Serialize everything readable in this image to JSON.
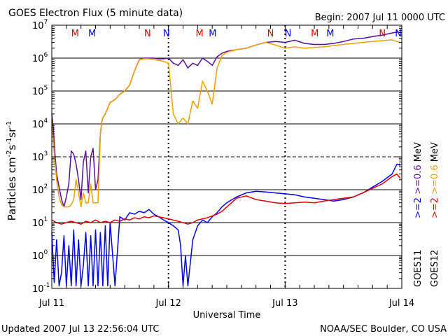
{
  "header": {
    "title": "GOES Electron Flux (5 minute data)",
    "begin": "Begin: 2007 Jul 11 0000 UTC"
  },
  "footer": {
    "updated": "Updated 2007 Jul 13 22:56:04 UTC",
    "source": "NOAA/SEC Boulder, CO USA"
  },
  "chart_data": {
    "type": "line",
    "title": "GOES Electron Flux (5 minute data)",
    "xlabel": "Universal Time",
    "ylabel_parts": [
      "Particles cm",
      "-2",
      "s",
      "-1",
      "sr",
      "-1"
    ],
    "x_unit": "hours since 2007 Jul 11 0000 UTC",
    "xlim": [
      0,
      72
    ],
    "x_ticks": [
      {
        "x": 0,
        "label": "Jul 11"
      },
      {
        "x": 24,
        "label": "Jul 12"
      },
      {
        "x": 48,
        "label": "Jul 13"
      },
      {
        "x": 72,
        "label": "Jul 14"
      }
    ],
    "y_scale": "log",
    "ylim": [
      0.1,
      10000000
    ],
    "y_tick_exponents": [
      -1,
      0,
      1,
      2,
      3,
      4,
      5,
      6,
      7
    ],
    "dashed_gridline": 1000,
    "satellite_markers": [
      {
        "x": 4.8,
        "label": "M",
        "color": "#e00000"
      },
      {
        "x": 8.3,
        "label": "M",
        "color": "#0000ff"
      },
      {
        "x": 19.7,
        "label": "N",
        "color": "#e00000"
      },
      {
        "x": 23.6,
        "label": "N",
        "color": "#0000ff"
      },
      {
        "x": 30.4,
        "label": "M",
        "color": "#e00000"
      },
      {
        "x": 33.1,
        "label": "M",
        "color": "#0000ff"
      },
      {
        "x": 45.0,
        "label": "N",
        "color": "#e00000"
      },
      {
        "x": 48.6,
        "label": "N",
        "color": "#0000ff"
      },
      {
        "x": 54.1,
        "label": "M",
        "color": "#e00000"
      },
      {
        "x": 57.3,
        "label": "M",
        "color": "#0000ff"
      },
      {
        "x": 68.0,
        "label": "N",
        "color": "#e00000"
      },
      {
        "x": 71.3,
        "label": "N",
        "color": "#0000ff"
      }
    ],
    "legend": {
      "goes11_label": "GOES11",
      "goes12_label": "GOES12",
      "mev": "MeV",
      "ge2": ">=2",
      "ge06": ">=0.6"
    },
    "series": [
      {
        "name": "GOES11 >=0.6 MeV",
        "color": "#5b0fa0",
        "x": [
          0,
          0.3,
          0.6,
          1.0,
          1.5,
          2.0,
          2.5,
          3.0,
          3.5,
          4.0,
          4.5,
          5.0,
          5.5,
          6.0,
          6.5,
          7.0,
          7.5,
          8.0,
          8.5,
          9.0,
          9.5,
          10.0,
          10.3,
          10.5,
          11.0,
          11.5,
          12.0,
          13.0,
          14.0,
          15.0,
          16.0,
          17.0,
          18.0,
          19.0,
          20.0,
          21.0,
          22.0,
          23.0,
          24.0,
          25.0,
          26.0,
          27.0,
          28.0,
          29.0,
          30.0,
          31.0,
          32.0,
          33.0,
          34.0,
          35.0,
          36.0,
          38.0,
          40.0,
          42.0,
          44.0,
          46.0,
          48.0,
          50.0,
          52.0,
          54.0,
          56.0,
          58.0,
          60.0,
          62.0,
          64.0,
          66.0,
          68.0,
          70.0,
          71.0,
          71.7
        ],
        "values": [
          20000,
          8000,
          1500,
          300,
          120,
          50,
          30,
          60,
          150,
          1500,
          1200,
          600,
          200,
          50,
          700,
          1500,
          80,
          1000,
          1800,
          100,
          200,
          5000,
          12000,
          15000,
          20000,
          30000,
          45000,
          55000,
          80000,
          100000,
          150000,
          400000,
          900000,
          1000000,
          1000000,
          1000000,
          950000,
          950000,
          1000000,
          700000,
          600000,
          900000,
          500000,
          700000,
          600000,
          1000000,
          800000,
          600000,
          1100000,
          1400000,
          1600000,
          1800000,
          2000000,
          2500000,
          3000000,
          3200000,
          3000000,
          3500000,
          2800000,
          2600000,
          2600000,
          2800000,
          3200000,
          3800000,
          4000000,
          4500000,
          5000000,
          5800000,
          6200000,
          6000000
        ]
      },
      {
        "name": "GOES12 >=0.6 MeV",
        "color": "#f0a000",
        "x": [
          0,
          0.3,
          0.6,
          1.0,
          1.5,
          2.0,
          2.5,
          3.0,
          3.5,
          4.0,
          4.5,
          5.0,
          5.5,
          6.0,
          6.5,
          7.0,
          7.5,
          8.0,
          8.5,
          9.0,
          9.5,
          10.0,
          10.3,
          10.5,
          11.0,
          11.5,
          12.0,
          13.0,
          14.0,
          15.0,
          16.0,
          17.0,
          18.0,
          19.0,
          20.0,
          21.0,
          22.0,
          23.0,
          24.0,
          25.0,
          26.0,
          27.0,
          28.0,
          29.0,
          30.0,
          31.0,
          32.0,
          33.0,
          34.0,
          35.0,
          36.0,
          38.0,
          40.0,
          42.0,
          44.0,
          46.0,
          48.0,
          50.0,
          52.0,
          54.0,
          56.0,
          58.0,
          60.0,
          62.0,
          64.0,
          66.0,
          68.0,
          70.0,
          71.0,
          71.7
        ],
        "values": [
          12000,
          3000,
          800,
          200,
          60,
          35,
          30,
          30,
          30,
          35,
          50,
          200,
          80,
          30,
          80,
          40,
          40,
          150,
          40,
          40,
          40,
          5000,
          12000,
          15000,
          20000,
          30000,
          45000,
          55000,
          80000,
          100000,
          150000,
          400000,
          900000,
          950000,
          950000,
          900000,
          850000,
          800000,
          700000,
          20000,
          10000,
          15000,
          10000,
          50000,
          30000,
          200000,
          100000,
          40000,
          500000,
          1200000,
          1500000,
          1800000,
          2000000,
          2500000,
          3000000,
          2500000,
          2000000,
          2200000,
          2000000,
          2100000,
          2200000,
          2400000,
          2600000,
          2800000,
          3000000,
          3200000,
          3400000,
          3600000,
          3200000,
          3000000
        ]
      },
      {
        "name": "GOES11 >=2 MeV",
        "color": "#0000ff",
        "x": [
          0,
          0.5,
          1.0,
          1.5,
          2.0,
          2.5,
          3.0,
          3.5,
          4.0,
          4.5,
          5.0,
          5.5,
          6.0,
          6.5,
          7.0,
          7.5,
          8.0,
          8.5,
          9.0,
          9.5,
          10.0,
          10.5,
          11.0,
          11.5,
          12.0,
          13.0,
          14.0,
          15.0,
          16.0,
          17.0,
          18.0,
          19.0,
          20.0,
          21.0,
          22.0,
          23.0,
          24.0,
          25.0,
          26.0,
          26.5,
          27.0,
          27.5,
          28.0,
          29.0,
          30.0,
          31.0,
          32.0,
          33.0,
          34.0,
          35.0,
          36.0,
          38.0,
          40.0,
          42.0,
          44.0,
          46.0,
          48.0,
          50.0,
          52.0,
          54.0,
          56.0,
          58.0,
          60.0,
          62.0,
          64.0,
          66.0,
          68.0,
          70.0,
          71.0,
          71.7
        ],
        "values": [
          5,
          0.15,
          3,
          0.12,
          0.3,
          4,
          0.12,
          2,
          0.12,
          6,
          0.12,
          3,
          0.12,
          0.5,
          5,
          0.12,
          4,
          0.12,
          6,
          0.12,
          5,
          0.12,
          8,
          0.12,
          10,
          0.12,
          15,
          12,
          20,
          18,
          22,
          20,
          25,
          18,
          15,
          12,
          10,
          8,
          6,
          2,
          0.12,
          1,
          0.12,
          3,
          8,
          12,
          10,
          15,
          20,
          30,
          40,
          60,
          80,
          90,
          85,
          80,
          75,
          70,
          60,
          55,
          50,
          45,
          50,
          60,
          80,
          120,
          180,
          300,
          600,
          550
        ]
      },
      {
        "name": "GOES12 >=2 MeV",
        "color": "#e00000",
        "x": [
          0,
          1.0,
          2.0,
          3.0,
          4.0,
          5.0,
          6.0,
          7.0,
          8.0,
          9.0,
          10.0,
          11.0,
          12.0,
          13.0,
          14.0,
          15.0,
          16.0,
          17.0,
          18.0,
          19.0,
          20.0,
          21.0,
          22.0,
          23.0,
          24.0,
          25.0,
          26.0,
          27.0,
          28.0,
          29.0,
          30.0,
          31.0,
          32.0,
          33.0,
          34.0,
          35.0,
          36.0,
          37.0,
          38.0,
          40.0,
          42.0,
          44.0,
          46.0,
          48.0,
          50.0,
          52.0,
          54.0,
          56.0,
          58.0,
          60.0,
          62.0,
          64.0,
          66.0,
          68.0,
          70.0,
          71.0,
          71.7
        ],
        "values": [
          12,
          10,
          9,
          10,
          11,
          10,
          9,
          11,
          10,
          12,
          10,
          11,
          10,
          12,
          11,
          13,
          12,
          14,
          13,
          15,
          14,
          16,
          15,
          14,
          13,
          12,
          11,
          10,
          9,
          10,
          12,
          13,
          14,
          16,
          18,
          22,
          30,
          40,
          55,
          65,
          50,
          45,
          40,
          38,
          40,
          42,
          40,
          45,
          50,
          55,
          60,
          80,
          110,
          150,
          250,
          300,
          220
        ]
      }
    ]
  }
}
